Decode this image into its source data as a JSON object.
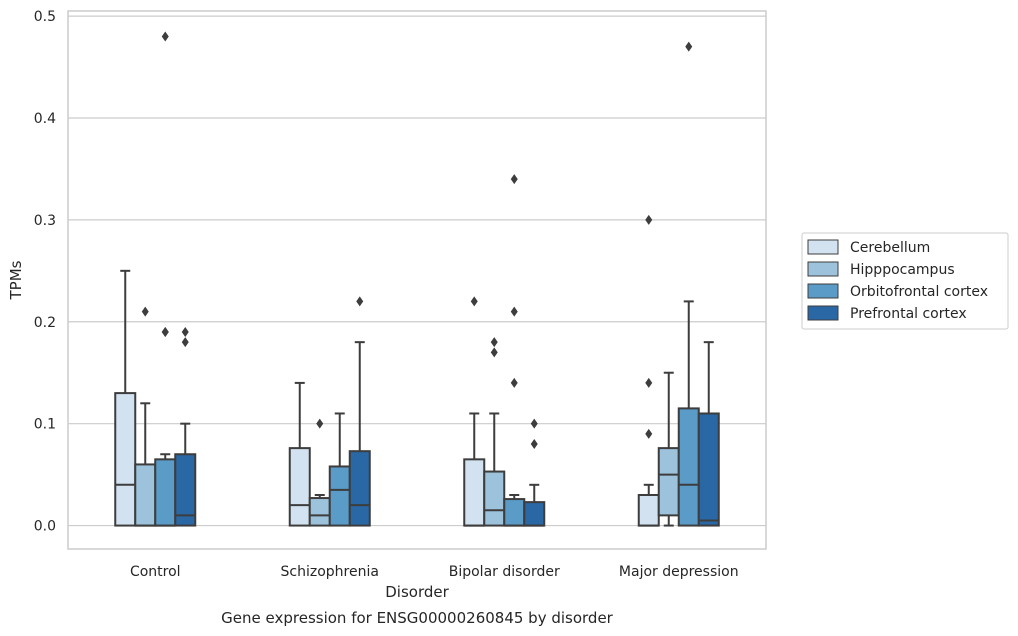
{
  "chart_data": {
    "type": "box",
    "caption": "Gene expression for ENSG00000260845 by disorder",
    "xlabel": "Disorder",
    "ylabel": "TPMs",
    "ylim": [
      -0.023,
      0.505
    ],
    "yticks": [
      0.0,
      0.1,
      0.2,
      0.3,
      0.4,
      0.5
    ],
    "ytick_labels": [
      "0.0",
      "0.1",
      "0.2",
      "0.3",
      "0.4",
      "0.5"
    ],
    "grid": true,
    "legend_position": "right",
    "categories": [
      "Control",
      "Schizophrenia",
      "Bipolar disorder",
      "Major depression"
    ],
    "series": [
      {
        "name": "Cerebellum",
        "color": "#d3e2f1",
        "boxes": [
          {
            "q1": 0.0,
            "median": 0.04,
            "q3": 0.13,
            "whisker_low": 0.0,
            "whisker_high": 0.25,
            "outliers": []
          },
          {
            "q1": 0.0,
            "median": 0.02,
            "q3": 0.076,
            "whisker_low": 0.0,
            "whisker_high": 0.14,
            "outliers": []
          },
          {
            "q1": 0.0,
            "median": 0.0,
            "q3": 0.065,
            "whisker_low": 0.0,
            "whisker_high": 0.11,
            "outliers": [
              0.22
            ]
          },
          {
            "q1": 0.0,
            "median": 0.0,
            "q3": 0.03,
            "whisker_low": 0.0,
            "whisker_high": 0.04,
            "outliers": [
              0.09,
              0.14,
              0.3
            ]
          }
        ]
      },
      {
        "name": "Hipppocampus",
        "color": "#9dc3dc",
        "boxes": [
          {
            "q1": 0.0,
            "median": 0.0,
            "q3": 0.06,
            "whisker_low": 0.0,
            "whisker_high": 0.12,
            "outliers": [
              0.21
            ]
          },
          {
            "q1": 0.0,
            "median": 0.01,
            "q3": 0.027,
            "whisker_low": 0.0,
            "whisker_high": 0.03,
            "outliers": [
              0.1
            ]
          },
          {
            "q1": 0.0,
            "median": 0.015,
            "q3": 0.053,
            "whisker_low": 0.0,
            "whisker_high": 0.11,
            "outliers": [
              0.17,
              0.18
            ]
          },
          {
            "q1": 0.01,
            "median": 0.05,
            "q3": 0.076,
            "whisker_low": 0.0,
            "whisker_high": 0.15,
            "outliers": []
          }
        ]
      },
      {
        "name": "Orbitofrontal cortex",
        "color": "#5a9bc8",
        "boxes": [
          {
            "q1": 0.0,
            "median": 0.0,
            "q3": 0.065,
            "whisker_low": 0.0,
            "whisker_high": 0.07,
            "outliers": [
              0.19,
              0.19,
              0.48
            ]
          },
          {
            "q1": 0.0,
            "median": 0.035,
            "q3": 0.058,
            "whisker_low": 0.0,
            "whisker_high": 0.11,
            "outliers": []
          },
          {
            "q1": 0.0,
            "median": 0.0,
            "q3": 0.026,
            "whisker_low": 0.0,
            "whisker_high": 0.03,
            "outliers": [
              0.14,
              0.21,
              0.34
            ]
          },
          {
            "q1": 0.0,
            "median": 0.04,
            "q3": 0.115,
            "whisker_low": 0.0,
            "whisker_high": 0.22,
            "outliers": [
              0.47
            ]
          }
        ]
      },
      {
        "name": "Prefrontal cortex",
        "color": "#2a67a5",
        "boxes": [
          {
            "q1": 0.0,
            "median": 0.01,
            "q3": 0.07,
            "whisker_low": 0.0,
            "whisker_high": 0.1,
            "outliers": [
              0.18,
              0.19
            ]
          },
          {
            "q1": 0.0,
            "median": 0.02,
            "q3": 0.073,
            "whisker_low": 0.0,
            "whisker_high": 0.18,
            "outliers": [
              0.22
            ]
          },
          {
            "q1": 0.0,
            "median": 0.0,
            "q3": 0.023,
            "whisker_low": 0.0,
            "whisker_high": 0.04,
            "outliers": [
              0.08,
              0.1
            ]
          },
          {
            "q1": 0.0,
            "median": 0.005,
            "q3": 0.11,
            "whisker_low": 0.0,
            "whisker_high": 0.18,
            "outliers": []
          }
        ]
      }
    ]
  }
}
